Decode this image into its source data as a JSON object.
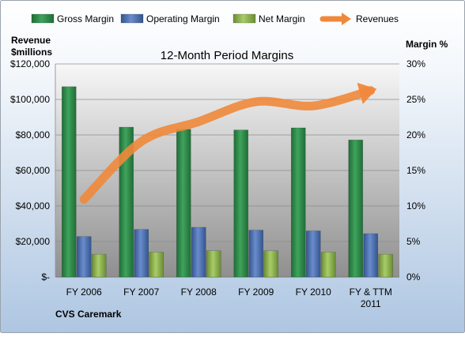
{
  "chart_data": {
    "type": "bar",
    "title": "12-Month Period Margins",
    "company": "CVS Caremark",
    "left_axis": {
      "label_line1": "Revenue",
      "label_line2": "$millions",
      "ylim": [
        0,
        120000
      ],
      "ticks": [
        "$-",
        "$20,000",
        "$40,000",
        "$60,000",
        "$80,000",
        "$100,000",
        "$120,000"
      ]
    },
    "right_axis": {
      "label": "Margin %",
      "ylim": [
        0,
        30
      ],
      "ticks": [
        "0%",
        "5%",
        "10%",
        "15%",
        "20%",
        "25%",
        "30%"
      ]
    },
    "categories": [
      [
        "FY 2006"
      ],
      [
        "FY 2007"
      ],
      [
        "FY 2008"
      ],
      [
        "FY 2009"
      ],
      [
        "FY 2010"
      ],
      [
        "FY & TTM",
        "2011"
      ]
    ],
    "series": [
      {
        "name": "Gross Margin",
        "axis": "right",
        "type": "bar",
        "color": "#2e8b4a",
        "values": [
          26.8,
          21.1,
          20.8,
          20.7,
          21.0,
          19.3
        ]
      },
      {
        "name": "Operating Margin",
        "axis": "right",
        "type": "bar",
        "color": "#4a6fb5",
        "values": [
          5.7,
          6.7,
          7.0,
          6.6,
          6.5,
          6.1
        ]
      },
      {
        "name": "Net Margin",
        "axis": "right",
        "type": "bar",
        "color": "#8db54f",
        "values": [
          3.2,
          3.5,
          3.7,
          3.7,
          3.5,
          3.2
        ]
      },
      {
        "name": "Revenues",
        "axis": "left",
        "type": "line",
        "color": "#f0883a",
        "values": [
          43800,
          76300,
          87500,
          98700,
          96400,
          105000
        ]
      }
    ],
    "grid": true,
    "legend": "top"
  }
}
